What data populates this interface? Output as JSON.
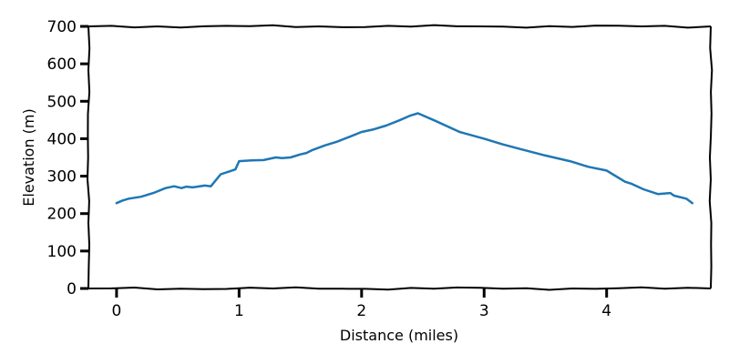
{
  "chart_data": {
    "type": "line",
    "title": "",
    "xlabel": "Distance (miles)",
    "ylabel": "Elevation (m)",
    "xlim": [
      -0.23,
      4.85
    ],
    "ylim": [
      0,
      700
    ],
    "x_ticks": [
      0,
      1,
      2,
      3,
      4
    ],
    "y_ticks": [
      0,
      100,
      200,
      300,
      400,
      500,
      600,
      700
    ],
    "grid": false,
    "series": [
      {
        "color": "#1f77b4",
        "x": [
          0,
          0.05,
          0.1,
          0.2,
          0.3,
          0.4,
          0.47,
          0.53,
          0.57,
          0.62,
          0.66,
          0.72,
          0.77,
          0.85,
          0.97,
          1.0,
          1.1,
          1.2,
          1.3,
          1.35,
          1.42,
          1.5,
          1.55,
          1.6,
          1.7,
          1.8,
          1.9,
          2.0,
          2.1,
          2.2,
          2.3,
          2.4,
          2.46,
          2.6,
          2.8,
          3.0,
          3.15,
          3.3,
          3.5,
          3.7,
          3.85,
          4.0,
          4.05,
          4.15,
          4.2,
          4.3,
          4.42,
          4.52,
          4.55,
          4.65,
          4.7
        ],
        "y": [
          228,
          235,
          240,
          245,
          255,
          268,
          273,
          268,
          272,
          270,
          272,
          275,
          273,
          305,
          318,
          340,
          342,
          343,
          350,
          348,
          350,
          358,
          362,
          370,
          382,
          392,
          405,
          418,
          425,
          435,
          448,
          462,
          468,
          448,
          418,
          400,
          385,
          372,
          355,
          340,
          325,
          315,
          305,
          285,
          280,
          265,
          252,
          255,
          248,
          240,
          228
        ]
      }
    ]
  }
}
